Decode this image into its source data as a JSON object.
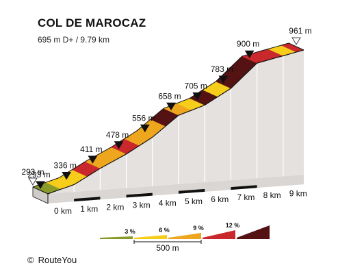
{
  "title": "COL DE MAROCAZ",
  "subtitle": "695 m D+ / 9.79 km",
  "credit": {
    "symbol": "©",
    "text": "RouteYou"
  },
  "chart_data": {
    "type": "area",
    "x_unit": "km",
    "y_unit": "m",
    "start_label": "293 m",
    "km_ticks": [
      "0 km",
      "1 km",
      "2 km",
      "3 km",
      "4 km",
      "5 km",
      "6 km",
      "7 km",
      "8 km",
      "9 km"
    ],
    "waypoints": [
      {
        "km": 0,
        "elev": 293,
        "label": "293 m"
      },
      {
        "km": 1,
        "elev": 336,
        "label": "336 m"
      },
      {
        "km": 2,
        "elev": 411,
        "label": "411 m"
      },
      {
        "km": 3,
        "elev": 478,
        "label": "478 m"
      },
      {
        "km": 4,
        "elev": 556,
        "label": "556 m"
      },
      {
        "km": 5,
        "elev": 658,
        "label": "658 m"
      },
      {
        "km": 6,
        "elev": 705,
        "label": "705 m"
      },
      {
        "km": 7,
        "elev": 783,
        "label": "783 m"
      },
      {
        "km": 8,
        "elev": 900,
        "label": "900 m"
      },
      {
        "km": 9.79,
        "elev": 961,
        "label": "961 m"
      }
    ],
    "segments": [
      {
        "from": 0,
        "to": 0.5,
        "grade": 2
      },
      {
        "from": 0.5,
        "to": 1,
        "grade": 4
      },
      {
        "from": 1,
        "to": 1.5,
        "grade": 5
      },
      {
        "from": 1.5,
        "to": 2,
        "grade": 10
      },
      {
        "from": 2,
        "to": 2.5,
        "grade": 7
      },
      {
        "from": 2.5,
        "to": 3,
        "grade": 7
      },
      {
        "from": 3,
        "to": 3.5,
        "grade": 10
      },
      {
        "from": 3.5,
        "to": 4,
        "grade": 6
      },
      {
        "from": 4,
        "to": 4.5,
        "grade": 7
      },
      {
        "from": 4.5,
        "to": 5,
        "grade": 13
      },
      {
        "from": 5,
        "to": 5.5,
        "grade": 7
      },
      {
        "from": 5.5,
        "to": 6,
        "grade": 3
      },
      {
        "from": 6,
        "to": 6.5,
        "grade": 13
      },
      {
        "from": 6.5,
        "to": 7,
        "grade": 3
      },
      {
        "from": 7,
        "to": 7.5,
        "grade": 13
      },
      {
        "from": 7.5,
        "to": 8,
        "grade": 13
      },
      {
        "from": 8,
        "to": 8.5,
        "grade": 10
      },
      {
        "from": 8.5,
        "to": 9,
        "grade": 10
      },
      {
        "from": 9,
        "to": 9.5,
        "grade": 5
      },
      {
        "from": 9.5,
        "to": 9.79,
        "grade": 10
      }
    ],
    "legend": {
      "items": [
        {
          "label": "3 %",
          "color": "#8a9a28"
        },
        {
          "label": "6 %",
          "color": "#f7cd1c"
        },
        {
          "label": "9 %",
          "color": "#eea61f"
        },
        {
          "label": "12 %",
          "color": "#c9282c"
        },
        {
          "label": "",
          "color": "#541213"
        }
      ],
      "scale_label": "500 m"
    },
    "colors": {
      "side_face": "#e5e1df",
      "base_strip": "#d9d6d4",
      "outline": "#111111",
      "stripe_dark": "#111111"
    }
  }
}
